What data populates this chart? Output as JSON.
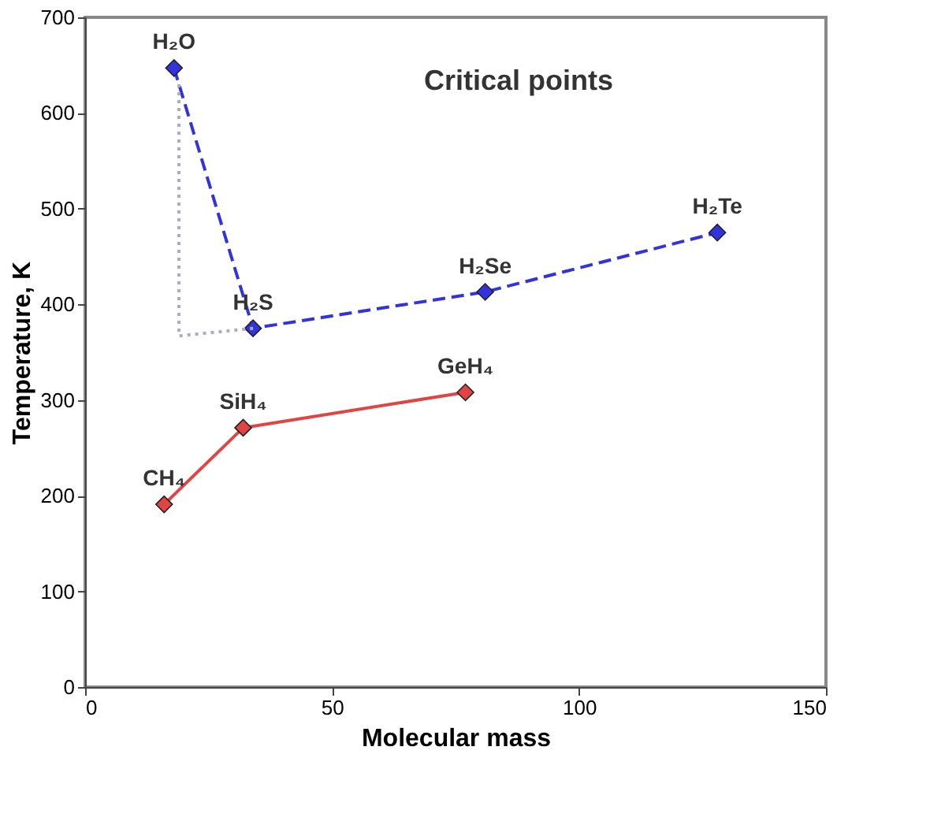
{
  "chart_data": {
    "type": "line",
    "title": "Critical points",
    "xlabel": "Molecular mass",
    "ylabel": "Temperature, K",
    "xlim": [
      0,
      150
    ],
    "xticks": [
      0,
      50,
      100,
      150
    ],
    "ylim": [
      0,
      700
    ],
    "yticks": [
      0,
      100,
      200,
      300,
      400,
      500,
      600,
      700
    ],
    "grid": false,
    "marker": "diamond",
    "series": [
      {
        "color": "#3333dd",
        "x": [
          18,
          34,
          81,
          128
        ],
        "values": [
          647,
          375,
          413,
          475
        ],
        "line_style": "dashed"
      },
      {
        "color": "#e04444",
        "x": [
          16,
          32,
          77
        ],
        "values": [
          191,
          271,
          308
        ],
        "line_style": "solid"
      },
      {
        "color": "#aaaacc",
        "x": [
          19,
          19,
          34
        ],
        "values": [
          630,
          367,
          375
        ],
        "line_style": "dotted",
        "marker": "none"
      }
    ],
    "annotations": [
      {
        "text": "H₂O",
        "x": 18,
        "y": 647
      },
      {
        "text": "H₂S",
        "x": 34,
        "y": 375
      },
      {
        "text": "H₂Se",
        "x": 81,
        "y": 413
      },
      {
        "text": "H₂Te",
        "x": 128,
        "y": 475
      },
      {
        "text": "CH₄",
        "x": 16,
        "y": 191
      },
      {
        "text": "SiH₄",
        "x": 32,
        "y": 271
      },
      {
        "text": "GeH₄",
        "x": 77,
        "y": 308
      }
    ]
  }
}
